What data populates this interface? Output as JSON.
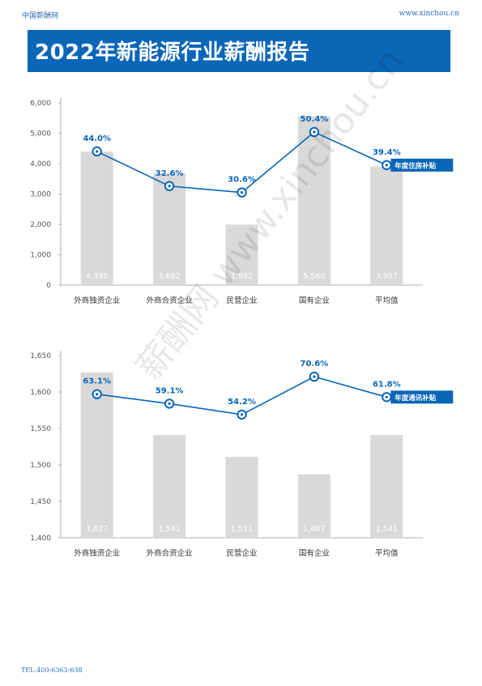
{
  "header": {
    "site_name": "中国薪酬网",
    "site_url": "www.xinchou.cn",
    "title": "2022年新能源行业薪酬报告"
  },
  "watermark": "薪酬网 www.xinchou.cn",
  "footer": {
    "tel": "TEL:400-6363-638"
  },
  "colors": {
    "accent": "#0a66b7",
    "bar": "#d9d9d9",
    "grid": "#cfcfcf"
  },
  "chart_data": [
    {
      "type": "bar+line",
      "categories": [
        "外商独资企业",
        "外商合资企业",
        "民营企业",
        "国有企业",
        "平均值"
      ],
      "values": [
        4395,
        3682,
        1992,
        5560,
        3907
      ],
      "value_labels": [
        "4,395",
        "3,682",
        "1,992",
        "5,560",
        "3,907"
      ],
      "line_values": [
        4400,
        3260,
        3050,
        5040,
        3950
      ],
      "line_labels": [
        "44.0%",
        "32.6%",
        "30.6%",
        "50.4%",
        "39.4%"
      ],
      "series_tag": "年度住房补贴",
      "ylim": [
        0,
        6000
      ],
      "yticks": [
        0,
        1000,
        2000,
        3000,
        4000,
        5000,
        6000
      ],
      "ytick_labels": [
        "0",
        "1,000",
        "2,000",
        "3,000",
        "4,000",
        "5,000",
        "6,000"
      ],
      "grid": false
    },
    {
      "type": "bar+line",
      "categories": [
        "外商独资企业",
        "外商合资企业",
        "民营企业",
        "国有企业",
        "平均值"
      ],
      "values": [
        1627,
        1541,
        1511,
        1487,
        1541
      ],
      "value_labels": [
        "1,627",
        "1,541",
        "1,511",
        "1,487",
        "1,541"
      ],
      "line_values": [
        1597,
        1584,
        1569,
        1621,
        1593
      ],
      "line_labels": [
        "63.1%",
        "59.1%",
        "54.2%",
        "70.6%",
        "61.8%"
      ],
      "series_tag": "年度通讯补贴",
      "ylim": [
        1400,
        1650
      ],
      "yticks": [
        1400,
        1450,
        1500,
        1550,
        1600,
        1650
      ],
      "ytick_labels": [
        "1,400",
        "1,450",
        "1,500",
        "1,550",
        "1,600",
        "1,650"
      ],
      "grid": false
    }
  ]
}
